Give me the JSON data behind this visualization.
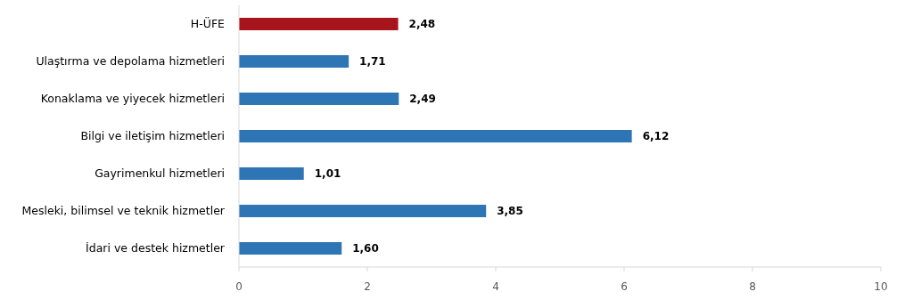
{
  "chart_data": {
    "type": "bar",
    "orientation": "horizontal",
    "categories": [
      "H-ÜFE",
      "Ulaştırma ve depolama hizmetleri",
      "Konaklama ve yiyecek hizmetleri",
      "Bilgi ve iletişim hizmetleri",
      "Gayrimenkul hizmetleri",
      "Mesleki, bilimsel ve teknik hizmetler",
      "İdari ve destek hizmetler"
    ],
    "values": [
      2.48,
      1.71,
      2.49,
      6.12,
      1.01,
      3.85,
      1.6
    ],
    "colors": [
      "#a8141c",
      "#2e75b6",
      "#2e75b6",
      "#2e75b6",
      "#2e75b6",
      "#2e75b6",
      "#2e75b6"
    ],
    "value_labels": [
      "2,48",
      "1,71",
      "2,49",
      "6,12",
      "1,01",
      "3,85",
      "1,60"
    ],
    "xlim": [
      0,
      10
    ],
    "xticks": [
      0,
      2,
      4,
      6,
      8,
      10
    ]
  }
}
